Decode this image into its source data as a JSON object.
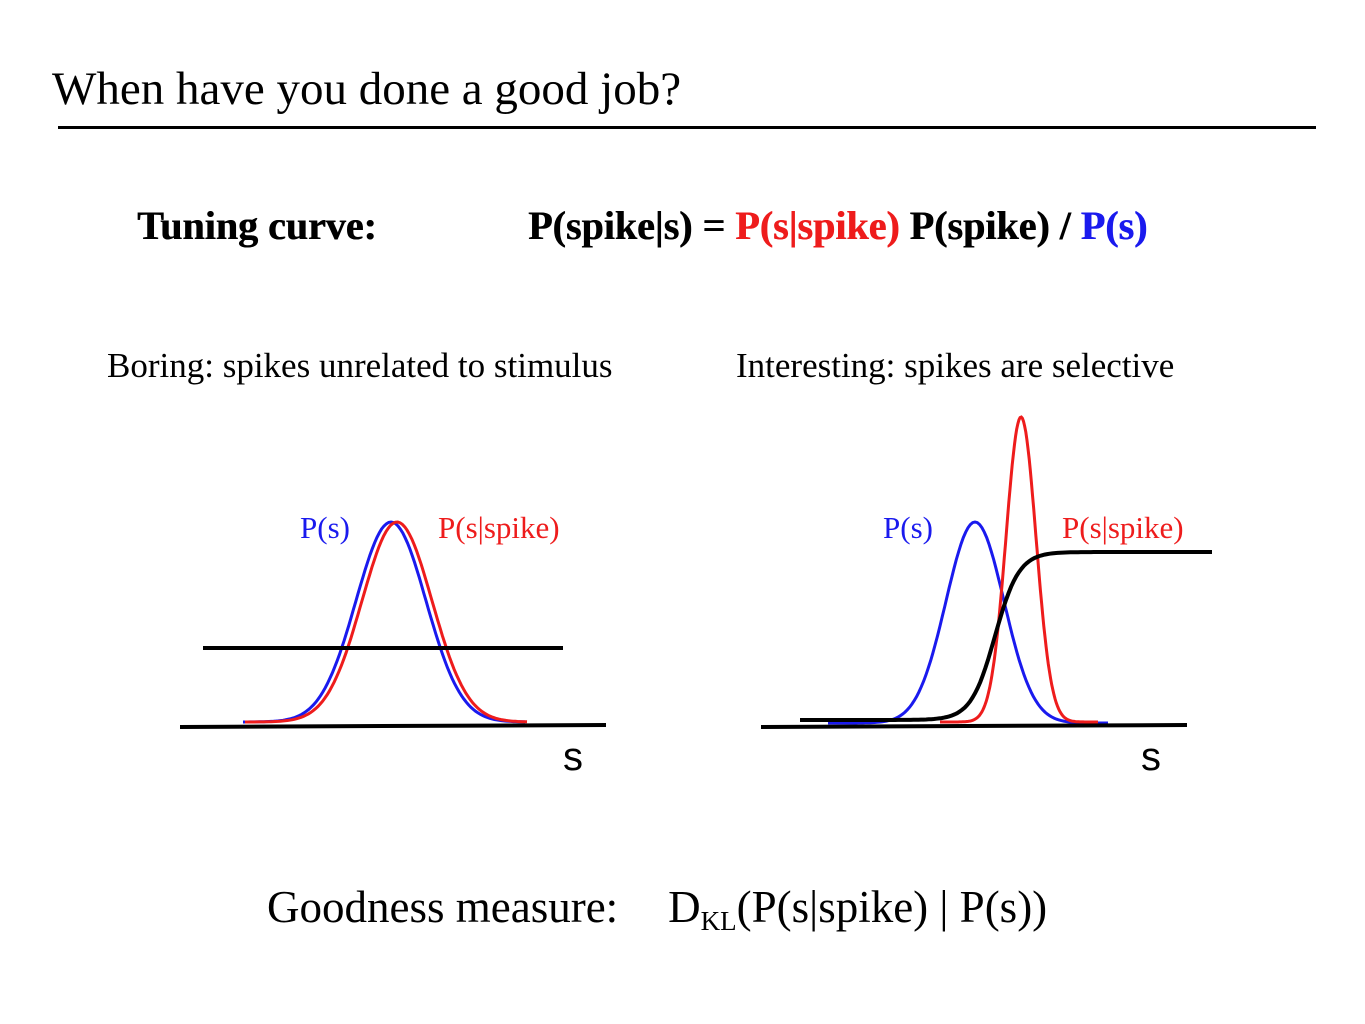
{
  "slide": {
    "title": "When have you done a good job?",
    "tuning_label": "Tuning curve:",
    "formula": {
      "lhs": "P(spike|s) = ",
      "likelihood": "P(s|spike)",
      "prior": " P(spike) / ",
      "evidence": "P(s)"
    },
    "boring_caption": "Boring: spikes unrelated to stimulus",
    "interesting_caption": "Interesting: spikes are selective",
    "goodness": {
      "label": "Goodness measure:",
      "d": "D",
      "kl": "KL",
      "expr": "(P(s|spike) | P(s))"
    }
  },
  "colors": {
    "prior": "#1a1aee",
    "conditional": "#ee1c1c",
    "tuning": "#000000"
  },
  "chart_data": [
    {
      "type": "line",
      "name": "boring",
      "series": [
        {
          "name": "P(s)",
          "color": "#1a1aee"
        },
        {
          "name": "P(s|spike)",
          "color": "#ee1c1c"
        }
      ],
      "xlabel": "s",
      "tuning_curve": "flat"
    },
    {
      "type": "line",
      "name": "interesting",
      "series": [
        {
          "name": "P(s)",
          "color": "#1a1aee"
        },
        {
          "name": "P(s|spike)",
          "color": "#ee1c1c"
        }
      ],
      "xlabel": "s",
      "tuning_curve": "sigmoid"
    }
  ]
}
